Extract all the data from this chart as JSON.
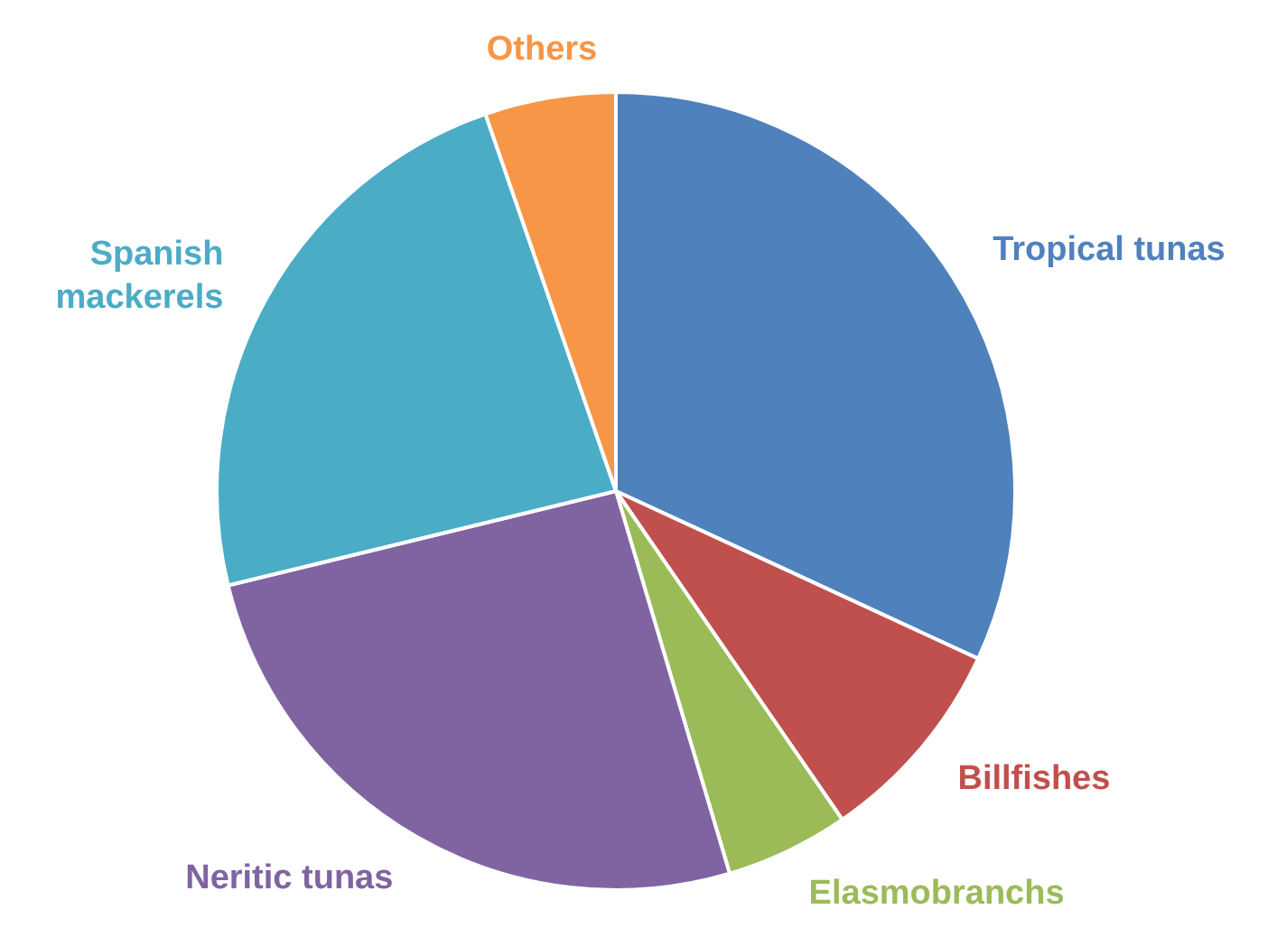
{
  "chart_data": {
    "type": "pie",
    "categories": [
      "Tropical tunas",
      "Billfishes",
      "Elasmobranchs",
      "Neritic tunas",
      "Spanish mackerels",
      "Others"
    ],
    "values": [
      31.9,
      8.5,
      5.0,
      25.8,
      23.5,
      5.3
    ],
    "colors": [
      "#4f81bd",
      "#c0504d",
      "#9bbb59",
      "#8064a2",
      "#4bacc6",
      "#f79646"
    ],
    "legend": false
  }
}
